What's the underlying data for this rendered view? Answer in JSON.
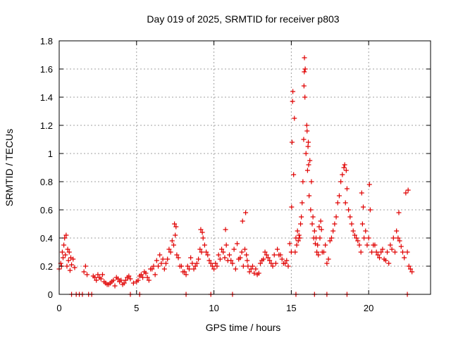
{
  "chart_data": {
    "type": "scatter",
    "title": "Day 019 of 2025, SRMTID for receiver p803",
    "xlabel": "GPS time / hours",
    "ylabel": "SRMTID / TECUs",
    "xlim": [
      0,
      24
    ],
    "ylim": [
      0,
      1.8
    ],
    "xticks": [
      0,
      5,
      10,
      15,
      20
    ],
    "xtick_labels": [
      "0",
      "5",
      "10",
      "15",
      "20"
    ],
    "yticks": [
      0,
      0.2,
      0.4,
      0.6,
      0.8,
      1.0,
      1.2,
      1.4,
      1.6,
      1.8
    ],
    "ytick_labels": [
      "0",
      "0.2",
      "0.4",
      "0.6",
      "0.8",
      "1",
      "1.2",
      "1.4",
      "1.6",
      "1.8"
    ],
    "grid": true,
    "marker": "+",
    "color": "#e00000",
    "series": [
      {
        "name": "SRMTID",
        "x": [
          0.0,
          0.1,
          0.2,
          0.3,
          0.4,
          0.5,
          0.6,
          0.7,
          0.8,
          0.9,
          1.0,
          1.6,
          1.7,
          1.8,
          2.2,
          2.4,
          2.6,
          2.8,
          3.0,
          3.2,
          3.4,
          3.6,
          3.8,
          4.0,
          4.2,
          4.4,
          4.6,
          4.8,
          5.0,
          5.2,
          5.4,
          5.6,
          5.8,
          6.0,
          6.2,
          6.4,
          6.6,
          6.8,
          7.0,
          7.2,
          7.4,
          7.6,
          7.8,
          8.0,
          8.2,
          8.4,
          8.6,
          8.8,
          9.0,
          9.2,
          9.4,
          9.6,
          9.8,
          10.0,
          10.2,
          10.4,
          10.6,
          10.8,
          11.0,
          11.2,
          11.4,
          11.6,
          11.8,
          12.0,
          12.2,
          12.4,
          12.6,
          12.8,
          13.0,
          13.2,
          13.4,
          13.6,
          13.8,
          14.0,
          14.2,
          14.4,
          14.6,
          14.8,
          15.0,
          15.1,
          15.2,
          15.3,
          15.4,
          15.5,
          15.6,
          15.7,
          15.8,
          15.85,
          15.9,
          16.0,
          16.1,
          16.2,
          16.3,
          16.4,
          16.5,
          16.6,
          16.7,
          16.8,
          16.9,
          17.0,
          17.2,
          17.4,
          17.6,
          17.8,
          18.0,
          18.2,
          18.4,
          18.6,
          18.8,
          19.0,
          19.2,
          19.4,
          19.6,
          19.8,
          20.0,
          20.2,
          20.4,
          20.6,
          20.8,
          21.0,
          21.2,
          21.4,
          21.6,
          21.8,
          22.0,
          22.2,
          22.4,
          22.6,
          22.8,
          0.15,
          0.35,
          0.55,
          0.75,
          2.3,
          2.5,
          2.7,
          2.9,
          3.1,
          3.3,
          3.5,
          3.7,
          3.9,
          4.1,
          4.3,
          4.5,
          5.1,
          5.3,
          5.5,
          5.7,
          5.9,
          6.1,
          6.3,
          6.5,
          6.7,
          6.9,
          7.1,
          7.3,
          7.5,
          7.7,
          7.9,
          8.1,
          8.3,
          8.5,
          8.7,
          8.9,
          9.1,
          9.3,
          9.5,
          9.7,
          9.9,
          10.1,
          10.3,
          10.5,
          10.7,
          10.9,
          11.1,
          11.3,
          11.5,
          11.7,
          11.9,
          12.1,
          12.3,
          12.5,
          12.7,
          12.9,
          13.1,
          13.3,
          13.5,
          13.7,
          13.9,
          14.1,
          14.3,
          14.5,
          14.7,
          14.9,
          15.05,
          15.15,
          15.25,
          15.35,
          15.45,
          15.55,
          15.65,
          15.75,
          15.95,
          16.05,
          16.15,
          16.25,
          16.35,
          16.45,
          16.55,
          16.65,
          16.75,
          16.85,
          16.95,
          17.1,
          17.3,
          17.5,
          17.7,
          17.9,
          18.1,
          18.3,
          18.5,
          18.7,
          18.9,
          19.1,
          19.3,
          19.5,
          19.7,
          19.9,
          20.1,
          20.3,
          20.5,
          20.7,
          20.9,
          21.1,
          21.3,
          21.5,
          21.7,
          21.9,
          22.1,
          22.3,
          22.5,
          22.7,
          0.25,
          0.45,
          0.65,
          7.45,
          7.55,
          9.15,
          9.25,
          10.75,
          11.85,
          12.05,
          12.15,
          15.02,
          15.08,
          15.82,
          15.84,
          15.88,
          16.02,
          16.08,
          16.12,
          18.45,
          18.55,
          19.55,
          19.65,
          20.05,
          21.95,
          22.55
        ],
        "y": [
          0.18,
          0.22,
          0.3,
          0.35,
          0.28,
          0.2,
          0.24,
          0.17,
          0.21,
          0.25,
          0.19,
          0.16,
          0.2,
          0.14,
          0.13,
          0.1,
          0.12,
          0.14,
          0.08,
          0.07,
          0.09,
          0.06,
          0.11,
          0.1,
          0.08,
          0.12,
          0.11,
          0.08,
          0.09,
          0.13,
          0.12,
          0.15,
          0.1,
          0.18,
          0.14,
          0.2,
          0.22,
          0.18,
          0.25,
          0.3,
          0.35,
          0.28,
          0.2,
          0.16,
          0.14,
          0.18,
          0.22,
          0.2,
          0.25,
          0.3,
          0.35,
          0.28,
          0.22,
          0.18,
          0.2,
          0.25,
          0.3,
          0.35,
          0.28,
          0.22,
          0.18,
          0.25,
          0.3,
          0.32,
          0.2,
          0.18,
          0.15,
          0.14,
          0.22,
          0.25,
          0.28,
          0.24,
          0.2,
          0.22,
          0.28,
          0.25,
          0.22,
          0.2,
          0.3,
          1.44,
          1.25,
          0.4,
          0.45,
          0.42,
          0.5,
          0.65,
          1.1,
          1.68,
          1.6,
          1.2,
          1.08,
          0.95,
          0.8,
          0.55,
          0.45,
          0.4,
          0.35,
          0.48,
          0.52,
          0.3,
          0.35,
          0.25,
          0.4,
          0.5,
          0.65,
          0.8,
          0.9,
          0.75,
          0.55,
          0.45,
          0.4,
          0.35,
          0.5,
          0.45,
          0.4,
          0.3,
          0.35,
          0.28,
          0.3,
          0.25,
          0.3,
          0.35,
          0.4,
          0.45,
          0.38,
          0.3,
          0.72,
          0.2,
          0.16,
          0.2,
          0.4,
          0.32,
          0.26,
          0.12,
          0.14,
          0.11,
          0.09,
          0.07,
          0.08,
          0.1,
          0.12,
          0.09,
          0.07,
          0.1,
          0.13,
          0.1,
          0.14,
          0.16,
          0.12,
          0.18,
          0.2,
          0.24,
          0.28,
          0.25,
          0.22,
          0.32,
          0.38,
          0.42,
          0.26,
          0.2,
          0.16,
          0.2,
          0.26,
          0.18,
          0.22,
          0.32,
          0.4,
          0.3,
          0.24,
          0.2,
          0.22,
          0.28,
          0.32,
          0.26,
          0.24,
          0.24,
          0.32,
          0.36,
          0.26,
          0.2,
          0.28,
          0.16,
          0.2,
          0.18,
          0.15,
          0.24,
          0.3,
          0.26,
          0.22,
          0.28,
          0.32,
          0.28,
          0.22,
          0.24,
          0.36,
          1.08,
          0.85,
          0.3,
          0.35,
          0.38,
          0.4,
          0.55,
          0.8,
          1.0,
          0.88,
          0.7,
          0.6,
          0.5,
          0.4,
          0.36,
          0.3,
          0.28,
          0.4,
          0.46,
          0.3,
          0.22,
          0.38,
          0.45,
          0.55,
          0.7,
          0.85,
          0.65,
          0.6,
          0.5,
          0.42,
          0.38,
          0.3,
          0.4,
          0.35,
          0.6,
          0.35,
          0.3,
          0.26,
          0.32,
          0.24,
          0.22,
          0.32,
          0.3,
          0.4,
          0.34,
          0.26,
          0.3,
          0.18,
          0.26,
          0.42,
          0.3,
          0.5,
          0.48,
          0.46,
          0.44,
          0.46,
          0.52,
          0.58,
          0.24,
          0.62,
          1.37,
          1.48,
          1.58,
          1.4,
          1.16,
          1.05,
          0.92,
          0.92,
          0.88,
          0.72,
          0.62,
          0.78,
          0.58,
          0.74
        ]
      }
    ],
    "markers_at_zero": [
      0.8,
      1.1,
      1.3,
      1.5,
      1.9,
      2.1,
      4.6,
      5.2,
      8.2,
      9.8,
      11.2,
      15.3,
      16.5,
      17.3,
      18.6,
      22.5
    ]
  }
}
